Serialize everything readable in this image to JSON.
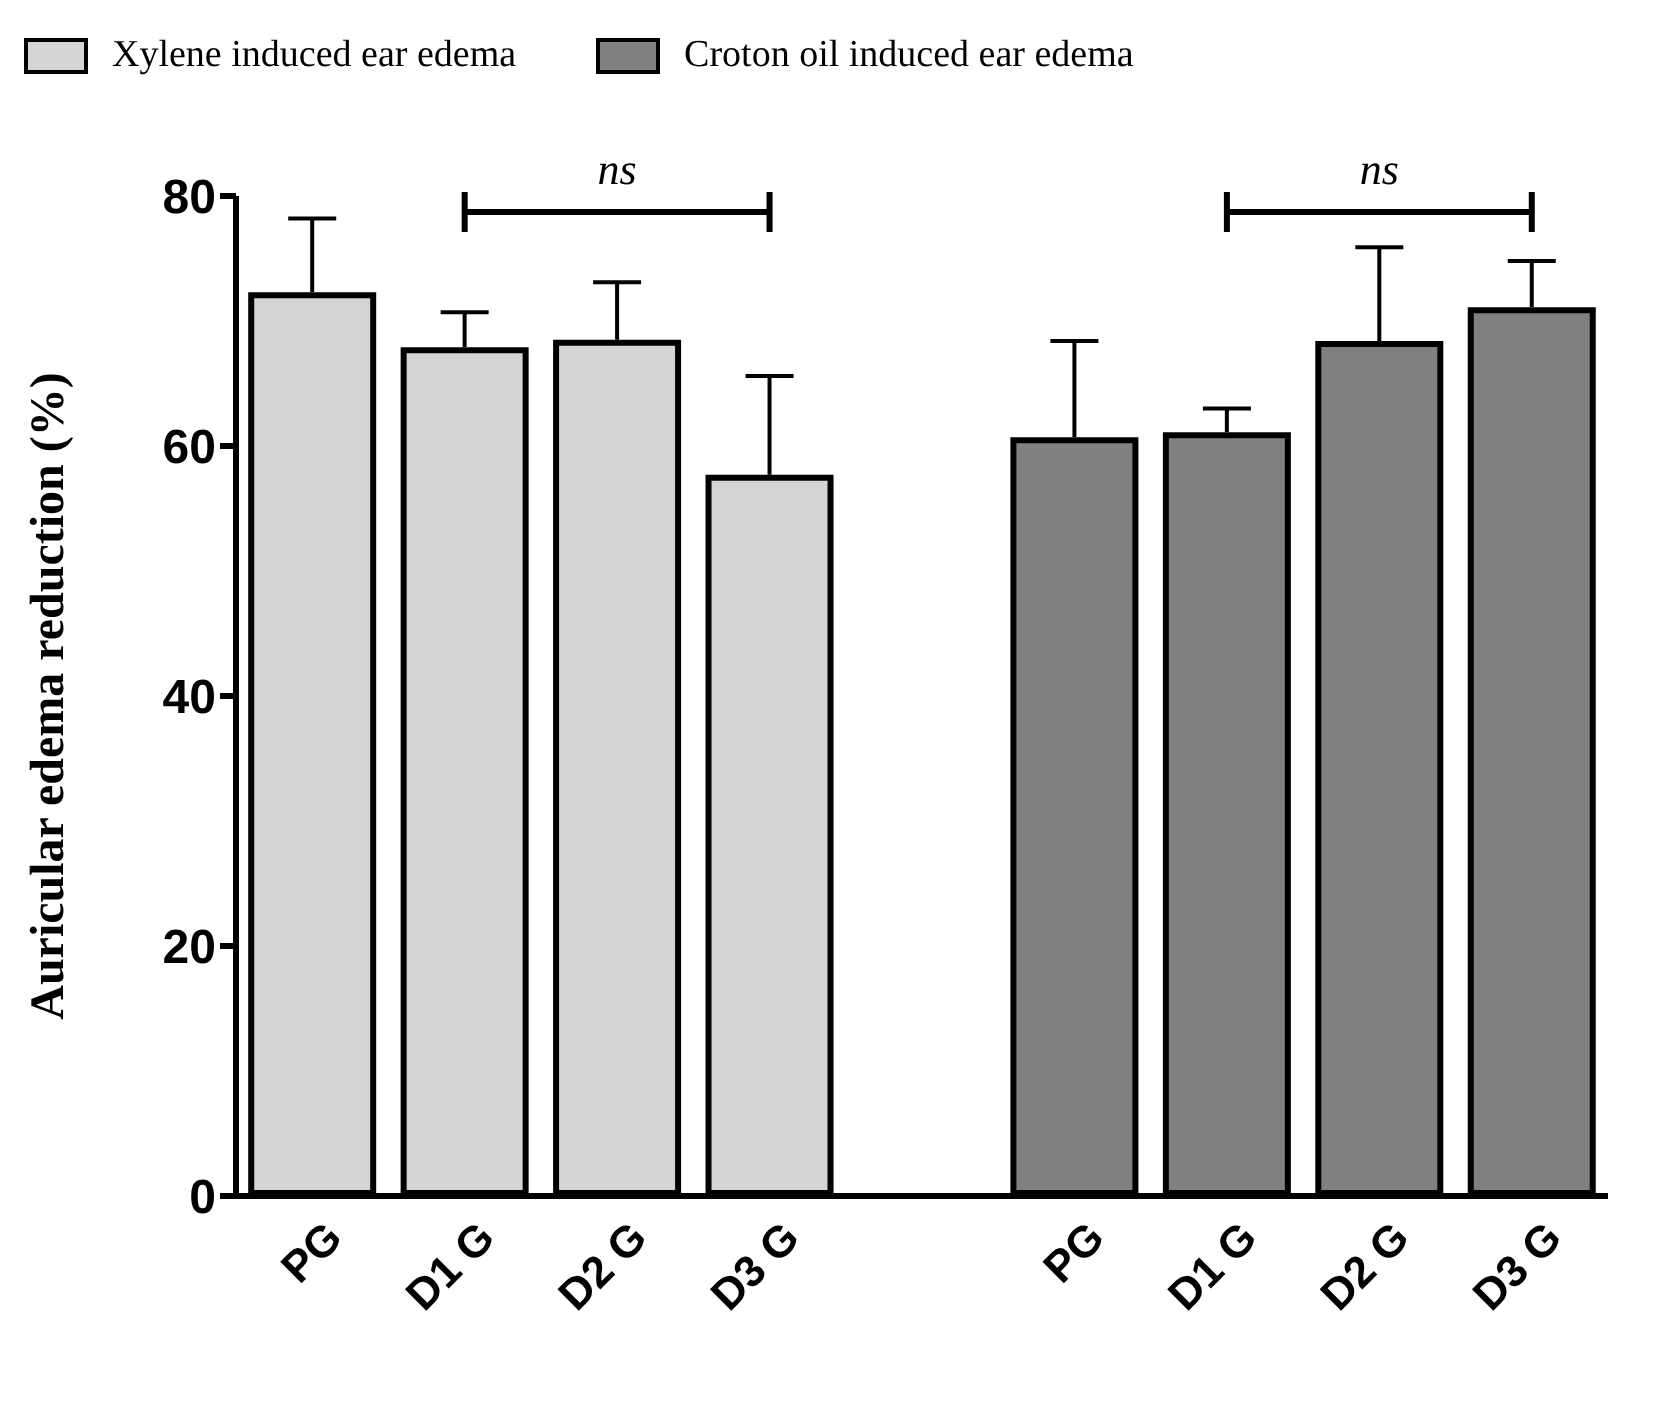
{
  "chart_data": {
    "type": "bar",
    "ylabel": "Auricular edema reduction (%)",
    "categories": [
      "PG",
      "D1 G",
      "D2 G",
      "D3 G",
      null,
      "PG",
      "D1 G",
      "D2 G",
      "D3 G"
    ],
    "series": [
      {
        "name": "Xylene induced ear edema",
        "color": "#d4d4d4",
        "values": [
          72.3,
          67.9,
          68.5,
          57.7,
          null,
          null,
          null,
          null,
          null
        ],
        "errors": [
          5.9,
          2.8,
          4.6,
          7.9,
          null,
          null,
          null,
          null,
          null
        ]
      },
      {
        "name": "Croton oil induced ear edema",
        "color": "#808080",
        "values": [
          null,
          null,
          null,
          null,
          null,
          60.7,
          61.1,
          68.4,
          71.1
        ],
        "errors": [
          null,
          null,
          null,
          null,
          null,
          7.7,
          1.9,
          7.5,
          3.7
        ]
      }
    ],
    "ylim": [
      0,
      80
    ],
    "yticks": [
      0,
      20,
      40,
      60,
      80
    ],
    "grid": false,
    "legend": "top",
    "annotations": [
      "ns",
      "ns"
    ]
  }
}
